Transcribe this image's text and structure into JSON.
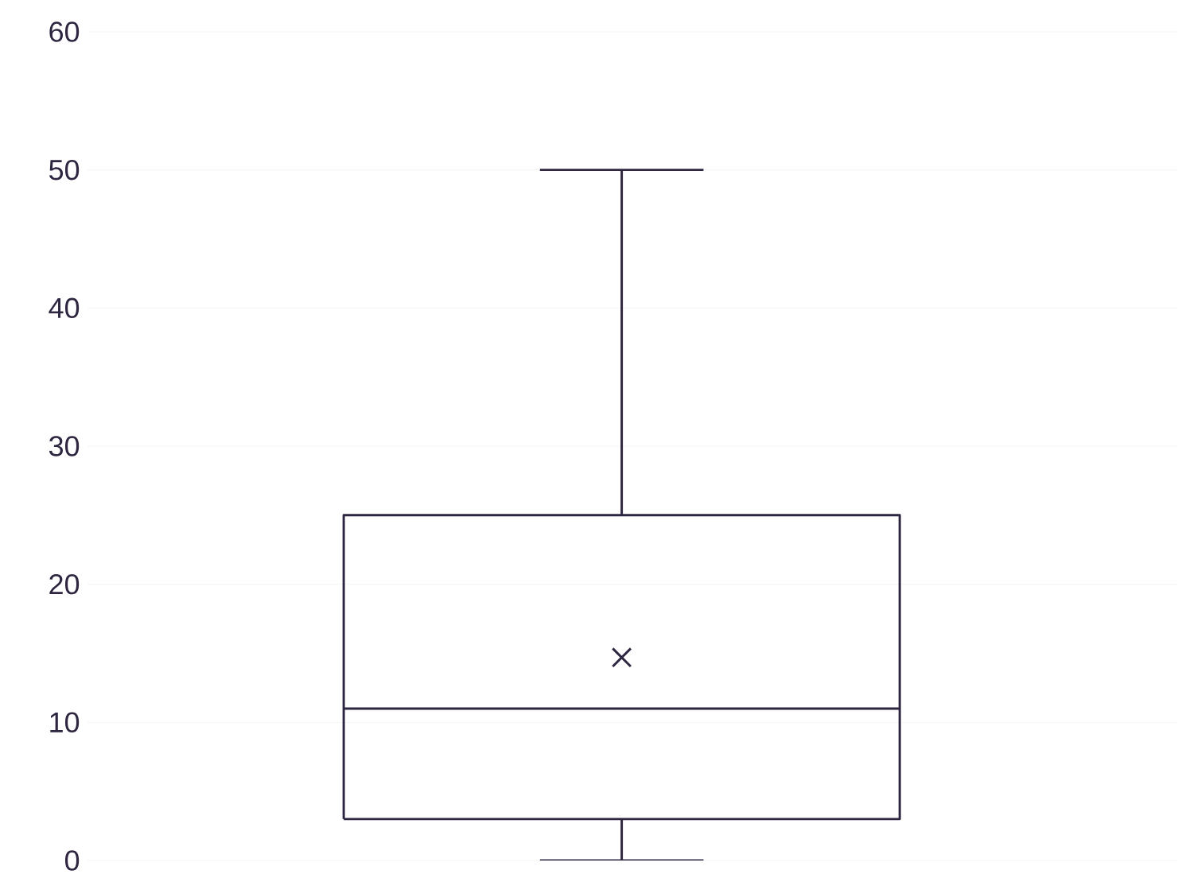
{
  "chart_data": {
    "type": "box",
    "categories": [
      null
    ],
    "boxes": [
      {
        "low": 0,
        "q1": 3,
        "median": 11,
        "q3": 25,
        "high": 50,
        "mean": 14.7
      }
    ],
    "color": "#2e2640",
    "ylim": [
      0,
      60
    ],
    "yticks": [
      0,
      10,
      20,
      30,
      40,
      50,
      60
    ],
    "grid": "y",
    "tick_labels": "y"
  }
}
